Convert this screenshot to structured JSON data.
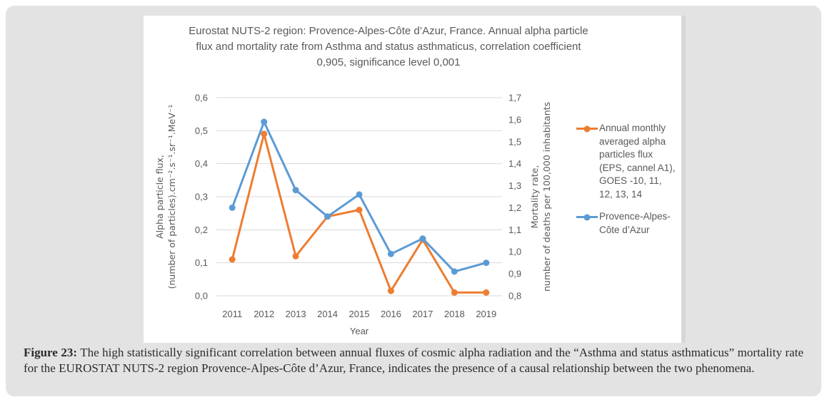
{
  "colors": {
    "series_orange": "#ED7D31",
    "series_blue": "#5B9BD5",
    "gridline": "#D9D9D9",
    "chart_text": "#595959",
    "card_background": "#E3E3E3"
  },
  "chart_data": {
    "type": "line",
    "title": "Eurostat NUTS-2 region: Provence-Alpes-Côte d’Azur, France. Annual alpha particle\nflux and mortality rate from Asthma and status asthmaticus, correlation coefficient\n0,905, significance level 0,001",
    "x": [
      "2011",
      "2012",
      "2013",
      "2014",
      "2015",
      "2016",
      "2017",
      "2018",
      "2019"
    ],
    "xlabel": "Year",
    "grid": true,
    "legend_position": "right",
    "axes": {
      "left": {
        "title": "Alpha particle flux,\n(number of particles).cm⁻².s⁻¹.sr⁻¹.MeV⁻¹",
        "ticks": [
          "0,0",
          "0,1",
          "0,2",
          "0,3",
          "0,4",
          "0,5",
          "0,6"
        ],
        "min": 0.0,
        "max": 0.6
      },
      "right": {
        "title": "Mortality rate,\nnumber of deaths per 100,000 inhabitants",
        "ticks": [
          "0,8",
          "0,9",
          "1,0",
          "1,1",
          "1,2",
          "1,3",
          "1,4",
          "1,5",
          "1,6",
          "1,7"
        ],
        "min": 0.8,
        "max": 1.7
      }
    },
    "series": [
      {
        "name": "Annual monthly averaged alpha particles flux (EPS, cannel A1), GOES -10, 11, 12, 13, 14",
        "axis": "left",
        "color": "#ED7D31",
        "values": [
          0.11,
          0.49,
          0.12,
          0.24,
          0.26,
          0.015,
          0.17,
          0.01,
          0.01
        ]
      },
      {
        "name": "Provence-Alpes-Côte d’Azur",
        "axis": "right",
        "color": "#5B9BD5",
        "values": [
          1.2,
          1.59,
          1.28,
          1.16,
          1.26,
          0.99,
          1.06,
          0.91,
          0.95
        ]
      }
    ]
  },
  "legend": {
    "items": [
      {
        "text": "Annual monthly\naveraged alpha\nparticles flux\n(EPS, cannel A1),\nGOES -10, 11,\n12, 13, 14"
      },
      {
        "text": "Provence-Alpes-\nCôte d’Azur"
      }
    ]
  },
  "figure": {
    "caption_label": "Figure 23:",
    "caption_text": " The high statistically significant correlation between annual fluxes of cosmic alpha radiation and the “Asthma and status asthmaticus” mortality rate for the EUROSTAT NUTS-2 region Provence-Alpes-Côte d’Azur, France, indicates the presence of a causal relationship between the two phenomena."
  }
}
